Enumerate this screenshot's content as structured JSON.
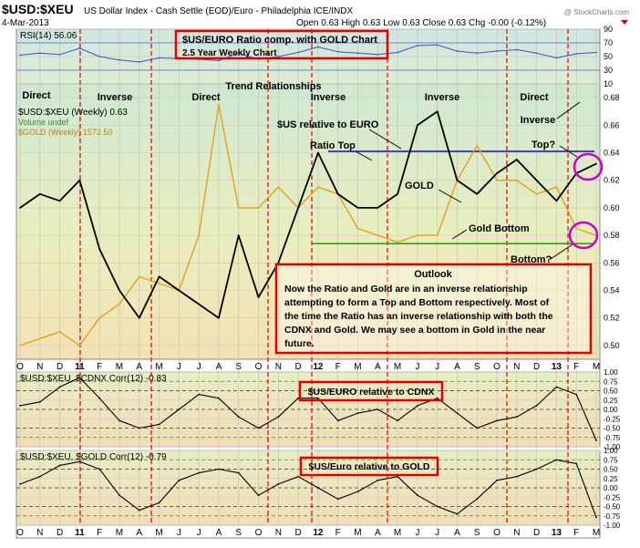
{
  "header": {
    "symbol": "$USD:$XEU",
    "description": "US Dollar Index - Cash Settle (EOD)/Euro - Philadelphia ICE/INDX",
    "date": "4-Mar-2013",
    "ohlc": "Open 0.63  High 0.63  Low 0.63  Close 0.63  Chg -0.00 (-0.12%)",
    "watermark": "@ StockCharts.com"
  },
  "rsi_panel": {
    "label": "RSI(14) 56.06",
    "ticks": [
      "90",
      "70",
      "50",
      "30",
      "10"
    ]
  },
  "main_panel": {
    "legend": [
      "$USD:$XEU (Weekly) 0.63",
      "Volume undef",
      "$GOLD (Weekly) 1572.50"
    ],
    "ticks": [
      "0.68",
      "0.66",
      "0.64",
      "0.62",
      "0.60",
      "0.58",
      "0.56",
      "0.54",
      "0.52",
      "0.50"
    ],
    "title_box": [
      "$US/EURO Ratio comp. with GOLD Chart",
      "2.5 Year Weekly Chart"
    ],
    "trend_title": "Trend Relationships",
    "trend_labels": [
      "Direct",
      "Inverse",
      "Direct",
      "Inverse",
      "Inverse",
      "Direct",
      "Inverse"
    ],
    "annotations": [
      "$US relative to EURO",
      "Ratio Top",
      "GOLD",
      "Gold Bottom",
      "Top?",
      "Bottom?"
    ],
    "outlook_title": "Outlook",
    "outlook_lines": [
      "Now the Ratio and Gold are in an inverse relationship",
      "attempting to form a Top and Bottom respectively. Most of",
      "the time the Ratio has an inverse relationship with both the",
      "CDNX and Gold. We may see a bottom in Gold in the near",
      "future."
    ]
  },
  "cdnx_panel": {
    "label": "$USD:$XEU, $CDNX Corr(12) -0.83",
    "box": "$US/EURO relative to CDNX",
    "ticks": [
      "1.00",
      "0.75",
      "0.50",
      "0.25",
      "0.00",
      "-0.25",
      "-0.50",
      "-0.75",
      "-1.00"
    ]
  },
  "gold_panel": {
    "label": "$USD:$XEU, $GOLD Corr(12) -0.79",
    "box": "$US/Euro relative to GOLD",
    "ticks": [
      "1.00",
      "0.75",
      "0.50",
      "0.25",
      "0.00",
      "-0.25",
      "-0.50",
      "-0.75",
      "-1.00"
    ]
  },
  "x_axis": [
    "O",
    "N",
    "D",
    "11",
    "F",
    "M",
    "A",
    "M",
    "J",
    "J",
    "A",
    "S",
    "O",
    "N",
    "D",
    "12",
    "F",
    "M",
    "A",
    "M",
    "J",
    "J",
    "A",
    "S",
    "O",
    "N",
    "D",
    "13",
    "F",
    "M"
  ],
  "colors": {
    "ratio": "#000000",
    "gold": "#e0a020",
    "rsi": "#3355cc",
    "highlight": "#cc00cc",
    "divider": "#dd0000",
    "ratio_top": "#1010bb",
    "gold_bottom": "#3a9a10"
  },
  "chart_data": [
    {
      "type": "line",
      "title": "$US/EURO Ratio comp. with GOLD Chart",
      "x": [
        "2010-10",
        "2010-11",
        "2010-12",
        "2011-01",
        "2011-02",
        "2011-03",
        "2011-04",
        "2011-05",
        "2011-06",
        "2011-07",
        "2011-08",
        "2011-09",
        "2011-10",
        "2011-11",
        "2011-12",
        "2012-01",
        "2012-02",
        "2012-03",
        "2012-04",
        "2012-05",
        "2012-06",
        "2012-07",
        "2012-08",
        "2012-09",
        "2012-10",
        "2012-11",
        "2012-12",
        "2013-01",
        "2013-02",
        "2013-03"
      ],
      "ylim": [
        0.49,
        0.69
      ],
      "series": [
        {
          "name": "$USD:$XEU (Weekly) 0.63",
          "values": [
            0.6,
            0.61,
            0.605,
            0.62,
            0.57,
            0.54,
            0.52,
            0.55,
            0.54,
            0.53,
            0.52,
            0.58,
            0.535,
            0.56,
            0.6,
            0.64,
            0.61,
            0.6,
            0.6,
            0.61,
            0.66,
            0.67,
            0.62,
            0.61,
            0.625,
            0.635,
            0.62,
            0.605,
            0.625,
            0.632
          ]
        },
        {
          "name": "$GOLD (Weekly) 1572.50",
          "values": [
            0.5,
            0.505,
            0.51,
            0.5,
            0.52,
            0.53,
            0.55,
            0.545,
            0.54,
            0.58,
            0.675,
            0.6,
            0.6,
            0.615,
            0.6,
            0.615,
            0.61,
            0.585,
            0.58,
            0.575,
            0.58,
            0.58,
            0.62,
            0.645,
            0.62,
            0.62,
            0.61,
            0.615,
            0.585,
            0.58
          ]
        }
      ],
      "reference_lines": [
        {
          "label": "Ratio Top",
          "y": 0.641
        },
        {
          "label": "Gold Bottom",
          "y": 0.574
        }
      ]
    },
    {
      "type": "line",
      "title": "RSI(14) 56.06",
      "ylim": [
        10,
        90
      ],
      "series": [
        {
          "name": "RSI(14)",
          "values": [
            52,
            55,
            53,
            62,
            50,
            45,
            42,
            48,
            47,
            46,
            44,
            55,
            46,
            50,
            56,
            64,
            57,
            55,
            53,
            56,
            66,
            67,
            58,
            55,
            58,
            60,
            55,
            48,
            54,
            56
          ]
        }
      ]
    },
    {
      "type": "line",
      "title": "$USD:$XEU, $CDNX Corr(12) -0.83",
      "ylim": [
        -1,
        1
      ],
      "series": [
        {
          "name": "$USD:$XEU, $CDNX Corr(12)",
          "values": [
            0.1,
            0.2,
            0.6,
            0.85,
            0.3,
            -0.3,
            -0.5,
            -0.4,
            0.0,
            0.4,
            0.3,
            -0.2,
            -0.5,
            -0.2,
            0.3,
            0.3,
            -0.3,
            -0.1,
            0.0,
            -0.3,
            0.1,
            0.3,
            -0.1,
            -0.5,
            -0.3,
            -0.2,
            0.1,
            0.6,
            0.4,
            -0.83
          ]
        }
      ]
    },
    {
      "type": "line",
      "title": "$USD:$XEU, $GOLD Corr(12) -0.79",
      "ylim": [
        -1,
        1
      ],
      "series": [
        {
          "name": "$USD:$XEU, $GOLD Corr(12)",
          "values": [
            0.1,
            0.3,
            0.6,
            0.7,
            0.5,
            -0.2,
            -0.6,
            -0.4,
            0.2,
            0.4,
            0.5,
            0.4,
            -0.2,
            0.1,
            0.3,
            0.0,
            -0.3,
            -0.1,
            0.2,
            0.3,
            -0.2,
            -0.5,
            -0.7,
            -0.3,
            0.2,
            0.3,
            0.5,
            0.75,
            0.65,
            -0.79
          ]
        }
      ]
    }
  ]
}
